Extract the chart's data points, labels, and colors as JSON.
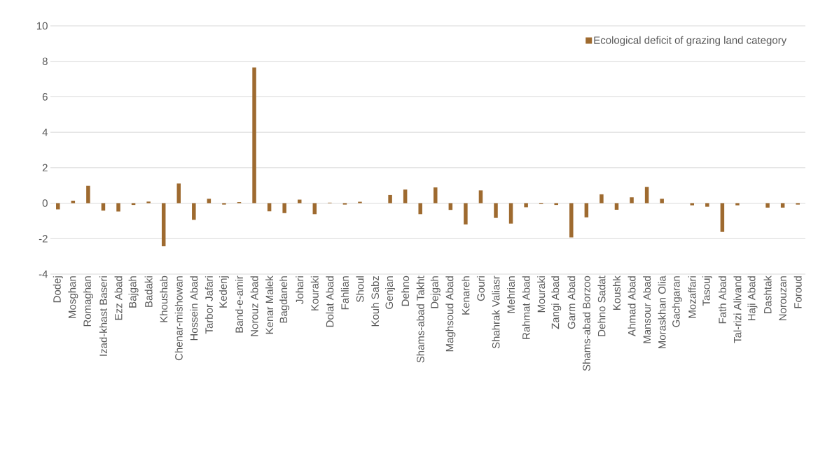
{
  "chart_data": {
    "type": "bar",
    "categories": [
      "Dodej",
      "Mosghan",
      "Romaghan",
      "Izad-khast Baseri",
      "Ezz Abad",
      "Bajgah",
      "Badaki",
      "Khoushab",
      "Chenar-mishowan",
      "Hossein Abad",
      "Tarbor Jafari",
      "Kedenj",
      "Band-e-amir",
      "Norouz Abad",
      "Kenar Malek",
      "Bagdaneh",
      "Johari",
      "Kouraki",
      "Dolat Abad",
      "Fahlian",
      "Shoul",
      "Kouh Sabz",
      "Genjan",
      "Dehno",
      "Shams-abad Takht",
      "Dejgah",
      "Maghsoud Abad",
      "Kenareh",
      "Gouri",
      "Shahrak Valiasr",
      "Mehrian",
      "Rahmat Abad",
      "Mouraki",
      "Zangi Abad",
      "Garm Abad",
      "Shams-abad Borzoo",
      "Dehno Sadat",
      "Koushk",
      "Ahmad Abad",
      "Mansour Abad",
      "Moraskhan Olia",
      "Gachgaran",
      "Mozaffari",
      "Tasouj",
      "Fath Abad",
      "Tal-rizi Alivand",
      "Haji Abad",
      "Dashtak",
      "Norouzan",
      "Foroud"
    ],
    "series": [
      {
        "name": "Ecological deficit of grazing land category",
        "color": "#9e6a2f",
        "values": [
          -0.35,
          0.14,
          0.98,
          -0.42,
          -0.47,
          -0.1,
          0.09,
          -2.43,
          1.11,
          -0.94,
          0.25,
          -0.08,
          0.06,
          7.65,
          -0.46,
          -0.56,
          0.2,
          -0.62,
          0.03,
          -0.08,
          0.08,
          null,
          0.46,
          0.77,
          -0.62,
          0.89,
          -0.38,
          -1.2,
          0.72,
          -0.83,
          -1.15,
          -0.23,
          -0.05,
          -0.1,
          -1.93,
          -0.8,
          0.5,
          -0.37,
          0.33,
          0.92,
          0.25,
          null,
          -0.12,
          -0.2,
          -1.62,
          -0.12,
          null,
          -0.25,
          -0.25,
          -0.08
        ]
      }
    ],
    "ylim": [
      -4,
      10
    ],
    "yticks": [
      -4,
      -2,
      0,
      2,
      4,
      6,
      8,
      10
    ],
    "grid": "y",
    "legend": "top right"
  }
}
